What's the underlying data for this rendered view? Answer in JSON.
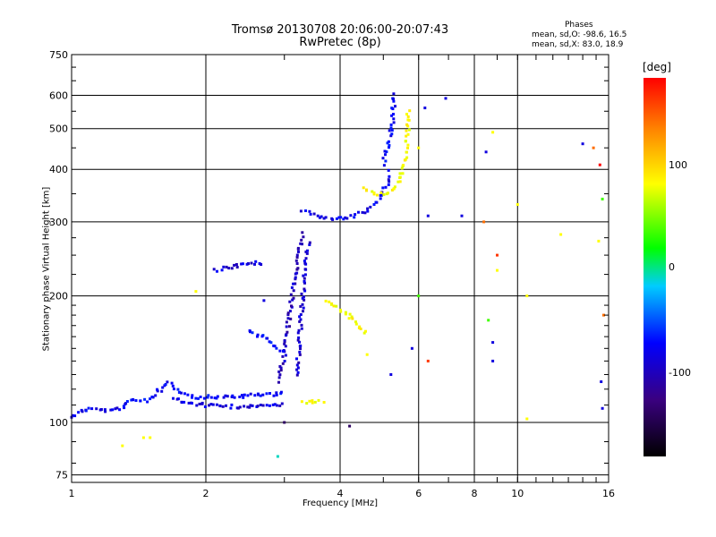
{
  "chart_data": {
    "type": "scatter",
    "title": "Tromsø 20130708 20:06:00-20:07:43",
    "subtitle": "RwPretec (8p)",
    "xlabel": "Frequency [MHz]",
    "ylabel": "Stationary phase Virtual Height [km]",
    "x_scale": "log",
    "y_scale": "log",
    "xlim": [
      1,
      16
    ],
    "ylim": [
      72,
      750
    ],
    "x_ticks": [
      "1",
      "2",
      "4",
      "6",
      "8",
      "10",
      "16"
    ],
    "y_ticks": [
      "75",
      "100",
      "200",
      "300",
      "400",
      "500",
      "600",
      "750"
    ],
    "grid": true,
    "colorbar": {
      "label": "[deg]",
      "range": [
        -180,
        180
      ],
      "ticks": [
        "100",
        "0",
        "-100"
      ],
      "colors": [
        "#000000",
        "#3a0080",
        "#0000ff",
        "#00ccff",
        "#00ff00",
        "#ffff00",
        "#ff8800",
        "#ff0000"
      ]
    },
    "phase_stats": {
      "heading": "Phases",
      "o_line": "mean, sd,O: -98.6, 16.5",
      "x_line": "mean, sd,X: 83.0, 18.9"
    },
    "segments": [
      {
        "x": [
          1.0,
          1.05,
          1.1,
          1.15,
          1.25,
          1.3
        ],
        "y": [
          103,
          106,
          108,
          107,
          107,
          108
        ],
        "phase": -105
      },
      {
        "x": [
          1.3,
          1.35,
          1.42,
          1.5,
          1.55,
          1.6
        ],
        "y": [
          108,
          114,
          112,
          113,
          118,
          120
        ],
        "phase": -100
      },
      {
        "x": [
          1.6,
          1.65,
          1.7,
          1.75,
          1.8,
          1.85,
          1.9,
          2.0,
          2.3,
          2.6,
          2.9,
          3.0
        ],
        "y": [
          120,
          124,
          122,
          117,
          116,
          116,
          115,
          115,
          115,
          116,
          117,
          118
        ],
        "phase": -100
      },
      {
        "x": [
          1.7,
          1.75,
          1.85,
          2.0,
          2.3,
          2.6,
          2.9,
          3.0
        ],
        "y": [
          115,
          112,
          111,
          110,
          109,
          109,
          110,
          111
        ],
        "phase": -110
      },
      {
        "x": [
          2.9,
          3.0,
          3.05,
          3.1,
          3.15,
          3.2,
          3.25,
          3.3
        ],
        "y": [
          125,
          145,
          165,
          190,
          215,
          235,
          260,
          285
        ],
        "phase": -120
      },
      {
        "x": [
          3.2,
          3.25,
          3.3,
          3.35,
          3.4
        ],
        "y": [
          130,
          160,
          200,
          240,
          270
        ],
        "phase": -115
      },
      {
        "x": [
          3.3,
          3.4,
          3.5,
          3.6,
          3.8,
          4.0,
          4.3,
          4.6,
          4.9,
          5.1,
          5.2
        ],
        "y": [
          320,
          315,
          312,
          308,
          305,
          305,
          310,
          320,
          340,
          370,
          400
        ],
        "phase": -105
      },
      {
        "x": [
          5.0,
          5.1,
          5.2,
          5.25,
          5.3
        ],
        "y": [
          410,
          450,
          490,
          530,
          610
        ],
        "phase": -100
      },
      {
        "x": [
          4.5,
          4.8,
          5.0,
          5.2,
          5.4,
          5.55,
          5.65,
          5.7
        ],
        "y": [
          360,
          350,
          350,
          355,
          370,
          400,
          450,
          560
        ],
        "phase": 80
      },
      {
        "x": [
          3.3,
          3.5,
          3.7
        ],
        "y": [
          112,
          112,
          112
        ],
        "phase": 80
      },
      {
        "x": [
          3.7,
          3.9,
          4.1,
          4.3,
          4.6
        ],
        "y": [
          195,
          190,
          183,
          175,
          160
        ],
        "phase": 80
      },
      {
        "x": [
          2.1,
          2.3,
          2.5,
          2.7
        ],
        "y": [
          230,
          235,
          238,
          240
        ],
        "phase": -110
      },
      {
        "x": [
          2.5,
          2.7,
          2.9,
          3.0
        ],
        "y": [
          165,
          160,
          150,
          145
        ],
        "phase": -95
      }
    ],
    "points": [
      {
        "x": 1.3,
        "y": 88,
        "phase": 80
      },
      {
        "x": 1.45,
        "y": 92,
        "phase": 80
      },
      {
        "x": 1.5,
        "y": 92,
        "phase": 80
      },
      {
        "x": 2.9,
        "y": 83,
        "phase": -30
      },
      {
        "x": 3.0,
        "y": 100,
        "phase": -150
      },
      {
        "x": 4.2,
        "y": 98,
        "phase": -150
      },
      {
        "x": 6.2,
        "y": 560,
        "phase": -110
      },
      {
        "x": 6.9,
        "y": 590,
        "phase": -110
      },
      {
        "x": 6.3,
        "y": 310,
        "phase": -110
      },
      {
        "x": 7.5,
        "y": 310,
        "phase": -110
      },
      {
        "x": 8.4,
        "y": 300,
        "phase": 140
      },
      {
        "x": 8.5,
        "y": 440,
        "phase": -110
      },
      {
        "x": 8.8,
        "y": 490,
        "phase": 80
      },
      {
        "x": 9.0,
        "y": 250,
        "phase": 160
      },
      {
        "x": 9.0,
        "y": 230,
        "phase": 80
      },
      {
        "x": 8.6,
        "y": 175,
        "phase": 20
      },
      {
        "x": 8.8,
        "y": 155,
        "phase": -110
      },
      {
        "x": 8.8,
        "y": 140,
        "phase": -110
      },
      {
        "x": 10.0,
        "y": 330,
        "phase": 80
      },
      {
        "x": 10.5,
        "y": 200,
        "phase": 80
      },
      {
        "x": 12.5,
        "y": 280,
        "phase": 80
      },
      {
        "x": 14.0,
        "y": 460,
        "phase": -110
      },
      {
        "x": 14.8,
        "y": 450,
        "phase": 140
      },
      {
        "x": 15.3,
        "y": 410,
        "phase": 180
      },
      {
        "x": 15.5,
        "y": 340,
        "phase": 20
      },
      {
        "x": 15.2,
        "y": 270,
        "phase": 80
      },
      {
        "x": 15.6,
        "y": 180,
        "phase": 140
      },
      {
        "x": 15.4,
        "y": 125,
        "phase": -110
      },
      {
        "x": 15.5,
        "y": 108,
        "phase": -110
      },
      {
        "x": 10.5,
        "y": 102,
        "phase": 80
      },
      {
        "x": 6.0,
        "y": 450,
        "phase": 80
      },
      {
        "x": 5.8,
        "y": 150,
        "phase": -110
      },
      {
        "x": 6.3,
        "y": 140,
        "phase": 160
      },
      {
        "x": 5.2,
        "y": 130,
        "phase": -110
      },
      {
        "x": 4.6,
        "y": 145,
        "phase": 80
      },
      {
        "x": 6.0,
        "y": 200,
        "phase": 20
      },
      {
        "x": 1.9,
        "y": 205,
        "phase": 80
      },
      {
        "x": 2.7,
        "y": 195,
        "phase": -110
      }
    ]
  }
}
